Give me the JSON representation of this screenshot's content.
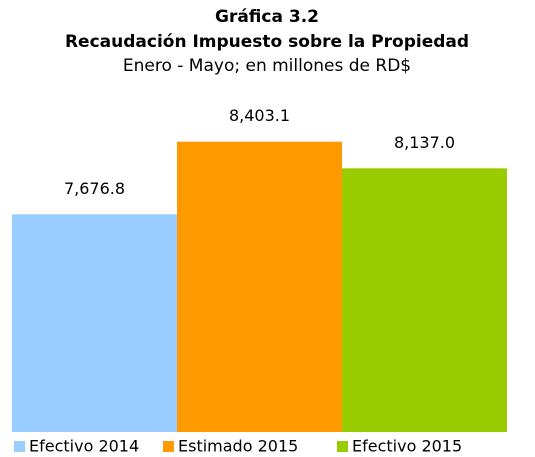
{
  "chart_data": {
    "type": "bar",
    "title": "Gráfica 3.2",
    "subtitle_main": "Recaudación Impuesto sobre la Propiedad",
    "subtitle": "Enero - Mayo; en millones de RD$",
    "series": [
      {
        "name": "Efectivo 2014",
        "color": "#99ccff",
        "values": [
          7676.8
        ],
        "value_labels": [
          "7,676.8"
        ]
      },
      {
        "name": "Estimado 2015",
        "color": "#ff9900",
        "values": [
          8403.1
        ],
        "value_labels": [
          "8,403.1"
        ]
      },
      {
        "name": "Efectivo 2015",
        "color": "#99cc00",
        "values": [
          8137.0
        ],
        "value_labels": [
          "8,137.0"
        ]
      }
    ],
    "ylim": [
      5500,
      8500
    ]
  }
}
